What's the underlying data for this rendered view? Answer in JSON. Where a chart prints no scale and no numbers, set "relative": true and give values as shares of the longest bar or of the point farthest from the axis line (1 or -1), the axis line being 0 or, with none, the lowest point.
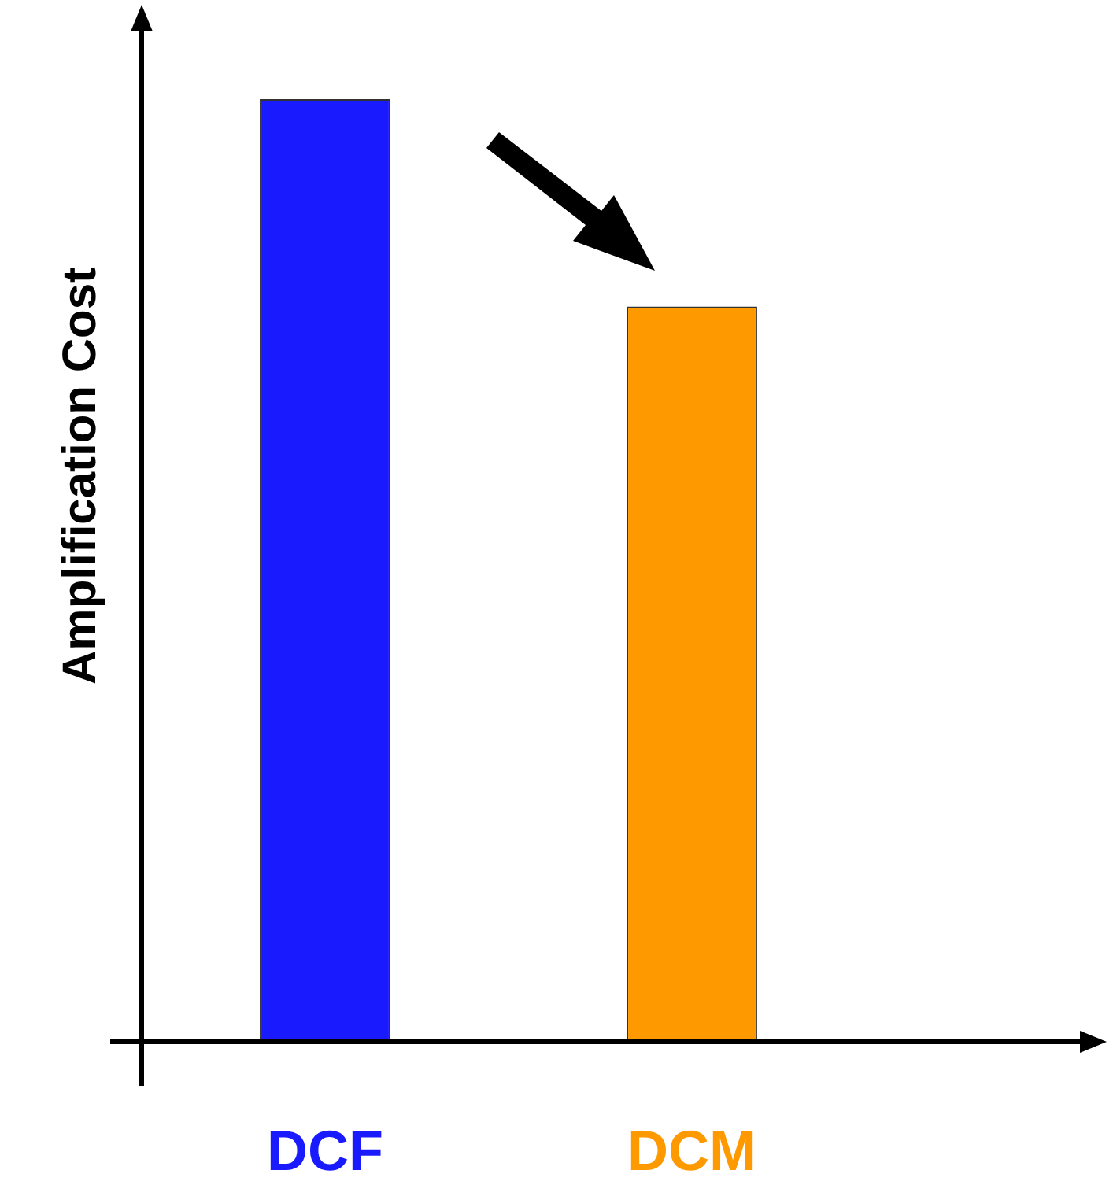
{
  "chart_data": {
    "type": "bar",
    "ylabel": "Amplification Cost",
    "categories": [
      "DCF",
      "DCM"
    ],
    "values": [
      1,
      0.78
    ],
    "colors": [
      "#1a1aff",
      "#ff9900"
    ],
    "relative": true,
    "grid": false,
    "legend": false
  }
}
